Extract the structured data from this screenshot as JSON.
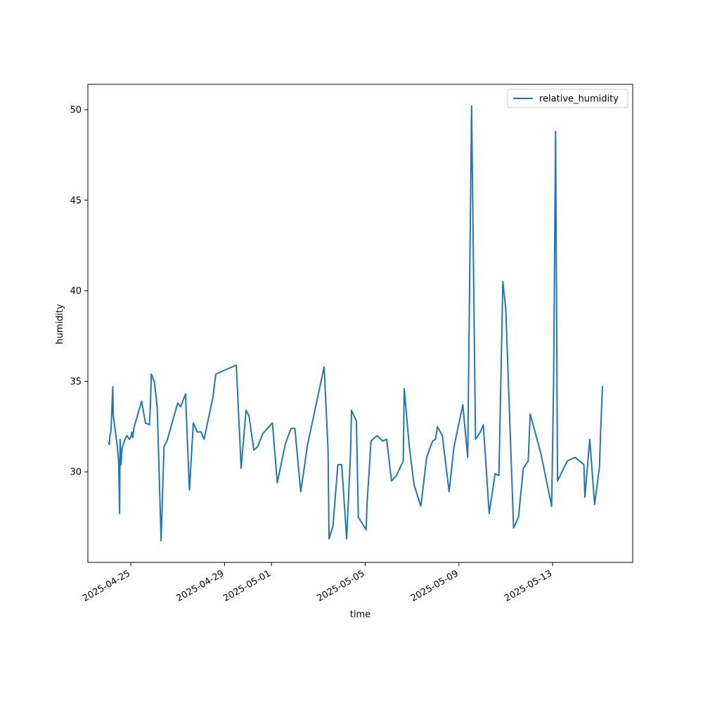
{
  "chart_data": {
    "type": "line",
    "title": "",
    "xlabel": "time",
    "ylabel": "humidity",
    "xlim": [
      "2025-04-23T04:00",
      "2025-05-16T10:00"
    ],
    "ylim": [
      25.0,
      51.4
    ],
    "x_ticks": [
      "2025-04-25",
      "2025-04-29",
      "2025-05-01",
      "2025-05-05",
      "2025-05-09",
      "2025-05-13"
    ],
    "y_ticks": [
      30,
      35,
      40,
      45,
      50
    ],
    "grid": false,
    "legend": {
      "position": "top-right"
    },
    "series": [
      {
        "name": "relative_humidity",
        "color": "#1f77b4",
        "points": [
          [
            "2025-04-24T01:20",
            31.6
          ],
          [
            "2025-04-24T02:00",
            31.5
          ],
          [
            "2025-04-24T02:30",
            32.0
          ],
          [
            "2025-04-24T03:30",
            32.2
          ],
          [
            "2025-04-24T04:00",
            32.7
          ],
          [
            "2025-04-24T05:30",
            34.7
          ],
          [
            "2025-04-24T06:00",
            33.1
          ],
          [
            "2025-04-24T09:00",
            31.9
          ],
          [
            "2025-04-24T10:30",
            31.2
          ],
          [
            "2025-04-24T11:30",
            30.6
          ],
          [
            "2025-04-24T12:30",
            27.7
          ],
          [
            "2025-04-24T13:00",
            31.8
          ],
          [
            "2025-04-24T14:00",
            30.4
          ],
          [
            "2025-04-24T15:00",
            31.3
          ],
          [
            "2025-04-24T18:00",
            31.8
          ],
          [
            "2025-04-24T20:00",
            32.0
          ],
          [
            "2025-04-24T22:30",
            31.8
          ],
          [
            "2025-04-25T00:00",
            31.9
          ],
          [
            "2025-04-25T01:00",
            32.2
          ],
          [
            "2025-04-25T02:00",
            31.9
          ],
          [
            "2025-04-25T03:00",
            32.4
          ],
          [
            "2025-04-25T11:00",
            33.9
          ],
          [
            "2025-04-25T15:00",
            32.7
          ],
          [
            "2025-04-25T19:00",
            32.6
          ],
          [
            "2025-04-25T20:00",
            33.6
          ],
          [
            "2025-04-25T21:00",
            35.4
          ],
          [
            "2025-04-26T00:00",
            35.0
          ],
          [
            "2025-04-26T03:00",
            33.6
          ],
          [
            "2025-04-26T07:00",
            26.2
          ],
          [
            "2025-04-26T09:00",
            29.7
          ],
          [
            "2025-04-26T10:00",
            31.4
          ],
          [
            "2025-04-26T13:00",
            31.7
          ],
          [
            "2025-04-27T00:00",
            33.8
          ],
          [
            "2025-04-27T03:00",
            33.6
          ],
          [
            "2025-04-27T08:00",
            34.3
          ],
          [
            "2025-04-27T12:00",
            29.0
          ],
          [
            "2025-04-27T16:00",
            32.7
          ],
          [
            "2025-04-27T20:00",
            32.2
          ],
          [
            "2025-04-28T00:00",
            32.2
          ],
          [
            "2025-04-28T03:00",
            31.8
          ],
          [
            "2025-04-28T12:00",
            34.1
          ],
          [
            "2025-04-28T15:00",
            35.4
          ],
          [
            "2025-04-29T12:00",
            35.9
          ],
          [
            "2025-04-29T17:00",
            30.2
          ],
          [
            "2025-04-29T22:00",
            33.4
          ],
          [
            "2025-04-30T01:00",
            33.1
          ],
          [
            "2025-04-30T06:00",
            31.2
          ],
          [
            "2025-04-30T10:00",
            31.4
          ],
          [
            "2025-04-30T15:00",
            32.1
          ],
          [
            "2025-05-01T01:00",
            32.7
          ],
          [
            "2025-05-01T06:00",
            29.4
          ],
          [
            "2025-05-01T14:00",
            31.5
          ],
          [
            "2025-05-01T20:00",
            32.4
          ],
          [
            "2025-05-02T00:00",
            32.4
          ],
          [
            "2025-05-02T06:00",
            28.9
          ],
          [
            "2025-05-02T13:00",
            31.5
          ],
          [
            "2025-05-03T06:00",
            35.8
          ],
          [
            "2025-05-03T10:00",
            31.2
          ],
          [
            "2025-05-03T11:00",
            26.3
          ],
          [
            "2025-05-03T15:00",
            27.0
          ],
          [
            "2025-05-03T20:00",
            30.4
          ],
          [
            "2025-05-04T00:00",
            30.4
          ],
          [
            "2025-05-04T05:00",
            26.3
          ],
          [
            "2025-05-04T09:00",
            31.0
          ],
          [
            "2025-05-04T10:00",
            33.4
          ],
          [
            "2025-05-04T15:00",
            32.8
          ],
          [
            "2025-05-04T17:00",
            27.5
          ],
          [
            "2025-05-05T01:00",
            26.8
          ],
          [
            "2025-05-05T02:00",
            28.3
          ],
          [
            "2025-05-05T06:00",
            31.7
          ],
          [
            "2025-05-05T12:00",
            32.0
          ],
          [
            "2025-05-05T18:00",
            31.7
          ],
          [
            "2025-05-05T22:00",
            31.8
          ],
          [
            "2025-05-06T03:00",
            29.5
          ],
          [
            "2025-05-06T08:00",
            29.8
          ],
          [
            "2025-05-06T15:00",
            30.6
          ],
          [
            "2025-05-06T16:00",
            34.6
          ],
          [
            "2025-05-06T21:00",
            31.5
          ],
          [
            "2025-05-07T02:00",
            29.3
          ],
          [
            "2025-05-07T09:00",
            28.1
          ],
          [
            "2025-05-07T15:00",
            30.8
          ],
          [
            "2025-05-07T21:00",
            31.7
          ],
          [
            "2025-05-08T00:00",
            31.8
          ],
          [
            "2025-05-08T02:00",
            32.5
          ],
          [
            "2025-05-08T07:00",
            32.0
          ],
          [
            "2025-05-08T14:00",
            28.9
          ],
          [
            "2025-05-08T19:00",
            31.4
          ],
          [
            "2025-05-09T04:00",
            33.7
          ],
          [
            "2025-05-09T09:00",
            30.8
          ],
          [
            "2025-05-09T13:00",
            50.2
          ],
          [
            "2025-05-09T17:00",
            31.8
          ],
          [
            "2025-05-09T22:00",
            32.2
          ],
          [
            "2025-05-10T01:00",
            32.6
          ],
          [
            "2025-05-10T07:00",
            27.7
          ],
          [
            "2025-05-10T13:00",
            29.9
          ],
          [
            "2025-05-10T17:00",
            29.8
          ],
          [
            "2025-05-10T21:00",
            40.5
          ],
          [
            "2025-05-11T00:00",
            39.0
          ],
          [
            "2025-05-11T08:00",
            26.9
          ],
          [
            "2025-05-11T13:00",
            27.5
          ],
          [
            "2025-05-11T18:00",
            30.2
          ],
          [
            "2025-05-11T23:00",
            30.6
          ],
          [
            "2025-05-12T01:00",
            33.2
          ],
          [
            "2025-05-12T12:00",
            31.0
          ],
          [
            "2025-05-12T23:00",
            28.1
          ],
          [
            "2025-05-13T01:00",
            35.0
          ],
          [
            "2025-05-13T03:00",
            48.8
          ],
          [
            "2025-05-13T05:00",
            29.5
          ],
          [
            "2025-05-13T15:00",
            30.6
          ],
          [
            "2025-05-13T23:00",
            30.8
          ],
          [
            "2025-05-14T08:00",
            30.4
          ],
          [
            "2025-05-14T09:00",
            28.6
          ],
          [
            "2025-05-14T14:00",
            31.8
          ],
          [
            "2025-05-14T19:00",
            28.2
          ],
          [
            "2025-05-15T00:00",
            30.3
          ],
          [
            "2025-05-15T01:00",
            32.0
          ],
          [
            "2025-05-15T03:00",
            34.7
          ]
        ]
      }
    ]
  }
}
